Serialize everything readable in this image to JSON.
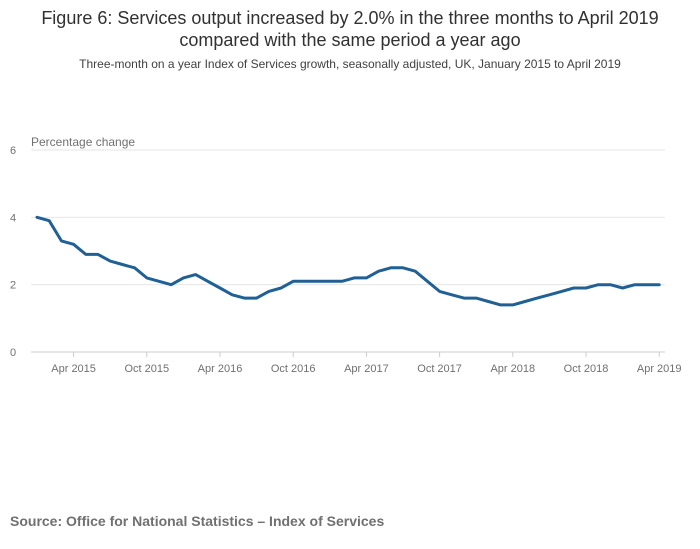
{
  "chart_data": {
    "type": "line",
    "title": "Figure 6: Services output increased by 2.0% in the three months to April 2019 compared with the same period a year ago",
    "subtitle": "Three-month on a year Index of Services growth, seasonally adjusted, UK, January 2015 to April 2019",
    "ylabel": "Percentage change",
    "xlabel": "",
    "ylim": [
      0,
      6
    ],
    "yticks": [
      0,
      2,
      4,
      6
    ],
    "grid": true,
    "line_color": "#206095",
    "x_tick_labels": [
      "Apr 2015",
      "Oct 2015",
      "Apr 2016",
      "Oct 2016",
      "Apr 2017",
      "Oct 2017",
      "Apr 2018",
      "Oct 2018",
      "Apr 2019"
    ],
    "x_tick_month_index": [
      3,
      9,
      15,
      21,
      27,
      33,
      39,
      45,
      51
    ],
    "x_start_label": "Jan 2015",
    "x_count": 52,
    "series": [
      {
        "name": "Three-month on a year growth",
        "values": [
          4.0,
          3.9,
          3.3,
          3.2,
          2.9,
          2.9,
          2.7,
          2.6,
          2.5,
          2.2,
          2.1,
          2.0,
          2.2,
          2.3,
          2.1,
          1.9,
          1.7,
          1.6,
          1.6,
          1.8,
          1.9,
          2.1,
          2.1,
          2.1,
          2.1,
          2.1,
          2.2,
          2.2,
          2.4,
          2.5,
          2.5,
          2.4,
          2.1,
          1.8,
          1.7,
          1.6,
          1.6,
          1.5,
          1.4,
          1.4,
          1.5,
          1.6,
          1.7,
          1.8,
          1.9,
          1.9,
          2.0,
          2.0,
          1.9,
          2.0,
          2.0,
          2.0
        ]
      }
    ]
  },
  "source": "Source: Office for National Statistics – Index of Services"
}
